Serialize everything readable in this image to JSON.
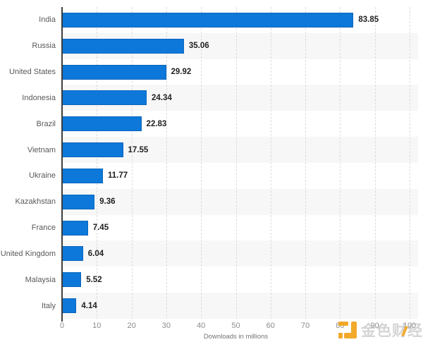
{
  "chart_data": {
    "type": "bar",
    "orientation": "horizontal",
    "title": "",
    "categories": [
      "India",
      "Russia",
      "United States",
      "Indonesia",
      "Brazil",
      "Vietnam",
      "Ukraine",
      "Kazakhstan",
      "France",
      "United Kingdom",
      "Malaysia",
      "Italy"
    ],
    "values": [
      83.85,
      35.06,
      29.92,
      24.34,
      22.83,
      17.55,
      11.77,
      9.36,
      7.45,
      6.04,
      5.52,
      4.14
    ],
    "value_labels": [
      "83.85",
      "35.06",
      "29.92",
      "24.34",
      "22.83",
      "17.55",
      "11.77",
      "9.36",
      "7.45",
      "6.04",
      "5.52",
      "4.14"
    ],
    "xlabel": "Downloads in millions",
    "ylabel": "",
    "x_ticks": [
      0,
      10,
      20,
      30,
      40,
      50,
      60,
      70,
      80,
      90,
      100
    ],
    "xlim": [
      0,
      100
    ],
    "grid": "vertical-dotted",
    "legend": "none",
    "bar_color": "#0d78d9",
    "stripe_color": "#f7f7f8",
    "axis_line_color": "#3d3d3d"
  },
  "watermark": {
    "text": "金色财经",
    "logo": "jinse-finance-logo",
    "logo_color": "#f2a51f"
  }
}
